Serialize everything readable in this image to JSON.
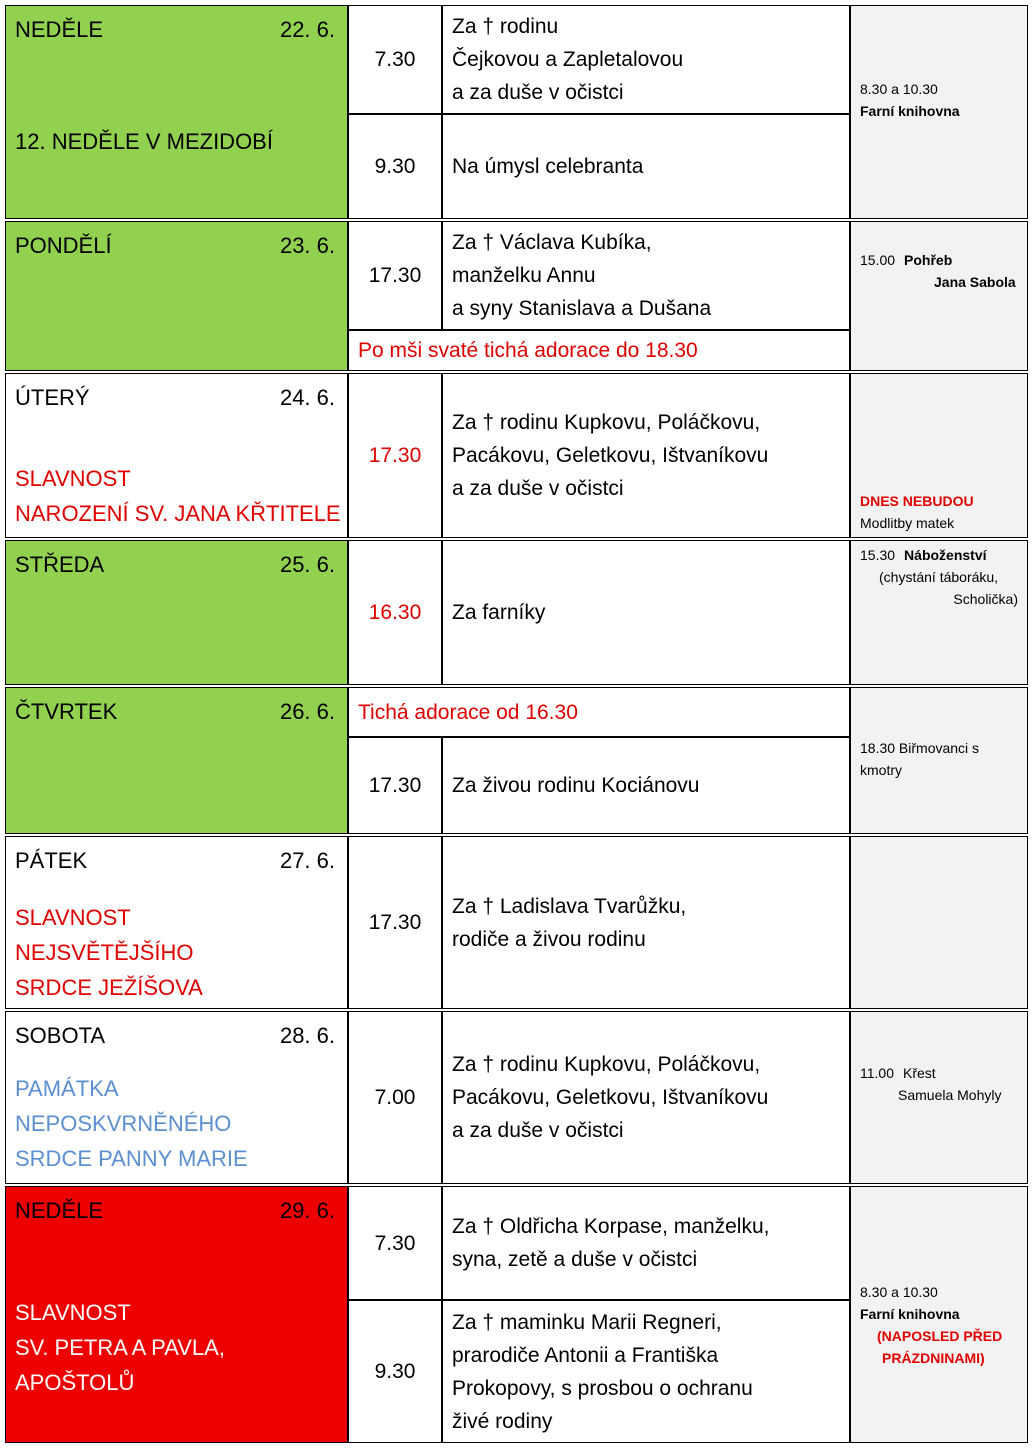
{
  "days": [
    {
      "name": "NEDĚLE",
      "date": "22. 6.",
      "feast": [
        "12. NEDĚLE V MEZIDOBÍ"
      ],
      "items": [
        {
          "time": "7.30",
          "lines": [
            "Za † rodinu",
            "Čejkovou a Zapletalovou",
            "a za duše v očistci"
          ]
        },
        {
          "time": "9.30",
          "lines": [
            "Na úmysl celebranta"
          ]
        }
      ],
      "side": [
        [
          "8.30 a 10.30"
        ],
        [
          "Farní knihovna"
        ]
      ]
    },
    {
      "name": "PONDĚLÍ",
      "date": "23. 6.",
      "feast": [],
      "items": [
        {
          "time": "17.30",
          "lines": [
            "Za † Václava Kubíka,",
            "manželku Annu",
            "a syny Stanislava a Dušana"
          ]
        },
        {
          "note": "Po mši svaté tichá adorace do 18.30"
        }
      ],
      "side": [
        [
          "15.00",
          "Pohřeb"
        ],
        [
          "Jana Sabola"
        ]
      ]
    },
    {
      "name": "ÚTERÝ",
      "date": "24. 6.",
      "feast": [
        "SLAVNOST",
        "NAROZENÍ SV. JANA KŘTITELE"
      ],
      "items": [
        {
          "time": "17.30",
          "lines": [
            "Za † rodinu Kupkovu, Poláčkovu,",
            "Pacákovu, Geletkovu, Ištvaníkovu",
            "a za duše v očistci"
          ]
        }
      ],
      "side": [
        [
          "DNES NEBUDOU"
        ],
        [
          "Modlitby matek"
        ]
      ]
    },
    {
      "name": "STŘEDA",
      "date": "25. 6.",
      "feast": [],
      "items": [
        {
          "time": "16.30",
          "lines": [
            "Za farníky"
          ]
        }
      ],
      "side": [
        [
          "15.30",
          "Náboženství"
        ],
        [
          "(chystání táboráku,"
        ],
        [
          "Scholička)"
        ]
      ]
    },
    {
      "name": "ČTVRTEK",
      "date": "26. 6.",
      "feast": [],
      "items": [
        {
          "note": "Tichá adorace od 16.30"
        },
        {
          "time": "17.30",
          "lines": [
            "Za živou rodinu Kociánovu"
          ]
        }
      ],
      "side": [
        [
          "18.30 Biřmovanci s"
        ],
        [
          "kmotry"
        ]
      ]
    },
    {
      "name": "PÁTEK",
      "date": "27. 6.",
      "feast": [
        "SLAVNOST",
        "NEJSVĚTĚJŠÍHO",
        "SRDCE JEŽÍŠOVA"
      ],
      "items": [
        {
          "time": "17.30",
          "lines": [
            "Za † Ladislava Tvarůžku,",
            "rodiče a živou rodinu"
          ]
        }
      ],
      "side": []
    },
    {
      "name": "SOBOTA",
      "date": "28. 6.",
      "feast": [
        "PAMÁTKA",
        "NEPOSKVRNĚNÉHO",
        "SRDCE PANNY MARIE"
      ],
      "items": [
        {
          "time": "7.00",
          "lines": [
            "Za † rodinu Kupkovu, Poláčkovu,",
            "Pacákovu, Geletkovu, Ištvaníkovu",
            "a za duše v očistci"
          ]
        }
      ],
      "side": [
        [
          "11.00",
          "Křest"
        ],
        [
          "Samuela Mohyly"
        ]
      ]
    },
    {
      "name": "NEDĚLE",
      "date": "29. 6.",
      "feast": [
        "SLAVNOST",
        "SV. PETRA A PAVLA,",
        "APOŠTOLŮ"
      ],
      "items": [
        {
          "time": "7.30",
          "lines": [
            "Za † Oldřicha Korpase, manželku,",
            "syna, zetě a duše v očistci"
          ]
        },
        {
          "time": "9.30",
          "lines": [
            "Za † maminku Marii Regneri,",
            "prarodiče Antonii a Františka",
            "Prokopovy, s prosbou o ochranu",
            "živé rodiny"
          ]
        }
      ],
      "side": [
        [
          "8.30 a 10.30"
        ],
        [
          "Farní knihovna"
        ],
        [
          "(NAPOSLED PŘED"
        ],
        [
          "PRÁZDNINAMI)"
        ]
      ]
    }
  ]
}
